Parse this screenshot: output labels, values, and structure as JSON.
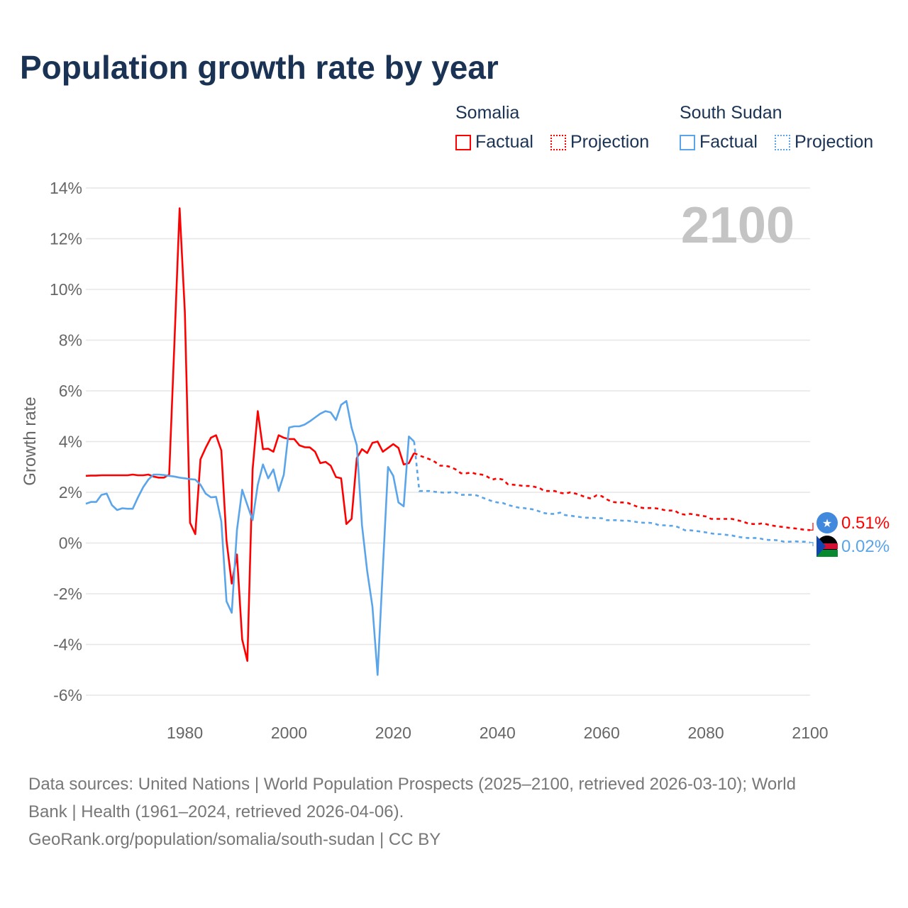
{
  "title": "Population growth rate by year",
  "legend": {
    "groups": [
      {
        "name": "Somalia",
        "color": "#ff0000",
        "items": [
          "Factual",
          "Projection"
        ]
      },
      {
        "name": "South Sudan",
        "color": "#5aa5ea",
        "items": [
          "Factual",
          "Projection"
        ]
      }
    ]
  },
  "year_label": "2100",
  "sources": {
    "line1": "Data sources: United Nations | World Population Prospects (2025–2100, retrieved 2026-03-10); World",
    "line2": "Bank | Health (1961–2024, retrieved 2026-04-06).",
    "line3": "GeoRank.org/population/somalia/south-sudan | CC BY"
  },
  "chart_data": {
    "type": "line",
    "title": "Population growth rate by year",
    "ylabel": "Growth rate",
    "xlabel": "",
    "xlim": [
      1961,
      2100
    ],
    "ylim": [
      -6,
      14
    ],
    "yticks": [
      -6,
      -4,
      -2,
      0,
      2,
      4,
      6,
      8,
      10,
      12,
      14
    ],
    "ytick_labels": [
      "-6%",
      "-4%",
      "-2%",
      "0%",
      "2%",
      "4%",
      "6%",
      "8%",
      "10%",
      "12%",
      "14%"
    ],
    "xticks": [
      1980,
      2000,
      2020,
      2040,
      2060,
      2080,
      2100
    ],
    "xtick_labels": [
      "1980",
      "2000",
      "2020",
      "2040",
      "2060",
      "2080",
      "2100"
    ],
    "grid": true,
    "legend_position": "top-right",
    "series": [
      {
        "name": "Somalia Factual",
        "color": "#ff0000",
        "dashed": false,
        "x_start": 1961,
        "values": [
          2.65,
          2.66,
          2.66,
          2.67,
          2.67,
          2.67,
          2.67,
          2.67,
          2.67,
          2.7,
          2.67,
          2.67,
          2.7,
          2.62,
          2.58,
          2.58,
          2.7,
          7.9,
          13.2,
          9.1,
          0.8,
          0.35,
          3.3,
          3.75,
          4.15,
          4.25,
          3.65,
          0.1,
          -1.6,
          -0.45,
          -3.8,
          -4.65,
          2.9,
          5.2,
          3.7,
          3.72,
          3.6,
          4.25,
          4.15,
          4.1,
          4.1,
          3.85,
          3.78,
          3.77,
          3.6,
          3.15,
          3.2,
          3.05,
          2.6,
          2.55,
          0.75,
          0.95,
          3.35,
          3.7,
          3.55,
          3.95,
          4.0,
          3.6,
          3.75,
          3.9,
          3.75,
          3.1,
          3.15,
          3.55
        ]
      },
      {
        "name": "Somalia Projection",
        "color": "#ff0000",
        "dashed": true,
        "x_start": 2024,
        "values": [
          3.55,
          3.45,
          3.38,
          3.3,
          3.2,
          3.05,
          3.05,
          3.0,
          2.9,
          2.75,
          2.75,
          2.78,
          2.72,
          2.7,
          2.62,
          2.5,
          2.55,
          2.5,
          2.32,
          2.3,
          2.28,
          2.25,
          2.25,
          2.22,
          2.18,
          2.05,
          2.05,
          2.05,
          1.98,
          1.95,
          2.0,
          1.95,
          1.88,
          1.8,
          1.75,
          1.88,
          1.85,
          1.72,
          1.62,
          1.6,
          1.6,
          1.58,
          1.5,
          1.42,
          1.38,
          1.38,
          1.38,
          1.35,
          1.3,
          1.28,
          1.28,
          1.15,
          1.12,
          1.15,
          1.12,
          1.08,
          1.05,
          0.95,
          0.95,
          0.95,
          0.95,
          0.95,
          0.9,
          0.85,
          0.78,
          0.75,
          0.75,
          0.78,
          0.72,
          0.68,
          0.65,
          0.63,
          0.6,
          0.58,
          0.55,
          0.52,
          0.51
        ]
      },
      {
        "name": "South Sudan Factual",
        "color": "#5aa5ea",
        "dashed": false,
        "x_start": 1961,
        "values": [
          1.55,
          1.62,
          1.62,
          1.9,
          1.95,
          1.5,
          1.3,
          1.37,
          1.35,
          1.35,
          1.8,
          2.2,
          2.5,
          2.7,
          2.7,
          2.68,
          2.65,
          2.62,
          2.58,
          2.55,
          2.52,
          2.5,
          2.3,
          1.95,
          1.8,
          1.82,
          0.85,
          -2.3,
          -2.75,
          0.5,
          2.1,
          1.5,
          0.9,
          2.3,
          3.1,
          2.55,
          2.9,
          2.05,
          2.7,
          4.55,
          4.6,
          4.6,
          4.67,
          4.8,
          4.95,
          5.1,
          5.2,
          5.15,
          4.85,
          5.45,
          5.6,
          4.55,
          3.85,
          0.7,
          -1.1,
          -2.5,
          -5.2,
          -1.0,
          3.0,
          2.65,
          1.6,
          1.45,
          4.2,
          4.0
        ]
      },
      {
        "name": "South Sudan Projection",
        "color": "#5aa5ea",
        "dashed": true,
        "x_start": 2024,
        "values": [
          4.0,
          2.05,
          2.05,
          2.05,
          2.02,
          2.0,
          1.98,
          2.0,
          2.0,
          1.9,
          1.9,
          1.9,
          1.88,
          1.8,
          1.72,
          1.65,
          1.6,
          1.58,
          1.5,
          1.45,
          1.4,
          1.38,
          1.35,
          1.32,
          1.25,
          1.18,
          1.15,
          1.15,
          1.2,
          1.1,
          1.08,
          1.05,
          1.02,
          1.0,
          1.0,
          0.98,
          0.98,
          0.9,
          0.9,
          0.9,
          0.88,
          0.88,
          0.85,
          0.82,
          0.8,
          0.8,
          0.78,
          0.7,
          0.7,
          0.68,
          0.68,
          0.6,
          0.5,
          0.5,
          0.48,
          0.45,
          0.42,
          0.38,
          0.35,
          0.35,
          0.32,
          0.3,
          0.25,
          0.22,
          0.2,
          0.2,
          0.2,
          0.15,
          0.12,
          0.12,
          0.1,
          0.05,
          0.05,
          0.07,
          0.05,
          0.05,
          0.02
        ]
      }
    ],
    "end_labels": [
      {
        "country": "Somalia",
        "text": "0.51%",
        "color": "#ff0000"
      },
      {
        "country": "South Sudan",
        "text": "0.02%",
        "color": "#5aa5ea"
      }
    ]
  }
}
